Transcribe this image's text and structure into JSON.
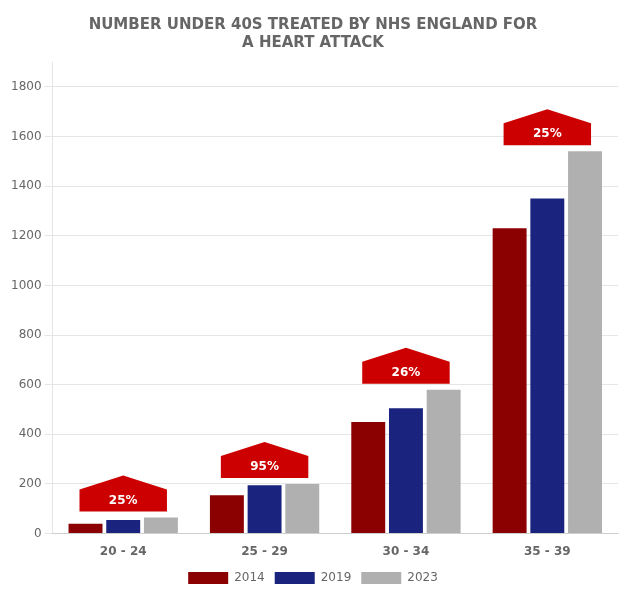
{
  "chart_data": {
    "type": "bar",
    "title": [
      "NUMBER UNDER 40S TREATED BY NHS ENGLAND FOR",
      "A HEART ATTACK"
    ],
    "categories": [
      "20 - 24",
      "25 - 29",
      "30 - 34",
      "35 - 39"
    ],
    "series": [
      {
        "name": "2014",
        "color": "#8b0000",
        "values": [
          40,
          155,
          450,
          1230
        ]
      },
      {
        "name": "2019",
        "color": "#1a237e",
        "values": [
          55,
          195,
          505,
          1350
        ]
      },
      {
        "name": "2023",
        "color": "#b0b0b0",
        "values": [
          65,
          200,
          580,
          1540
        ]
      }
    ],
    "ylim": [
      0,
      1900
    ],
    "yticks": [
      0,
      200,
      400,
      600,
      800,
      1000,
      1200,
      1400,
      1600,
      1800
    ],
    "grid": true,
    "legend": "bottom",
    "annotations": [
      {
        "category": "20 - 24",
        "text": "25%",
        "color": "#cc0000"
      },
      {
        "category": "25 - 29",
        "text": "95%",
        "color": "#cc0000"
      },
      {
        "category": "30 - 34",
        "text": "26%",
        "color": "#cc0000"
      },
      {
        "category": "35 - 39",
        "text": "25%",
        "color": "#cc0000"
      }
    ]
  }
}
